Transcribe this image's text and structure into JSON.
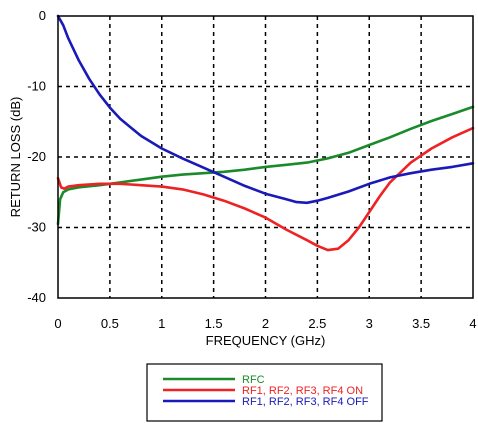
{
  "chart_data": {
    "type": "line",
    "title": "",
    "xlabel": "FREQUENCY (GHz)",
    "ylabel": "RETURN LOSS (dB)",
    "xlim": [
      0,
      4
    ],
    "ylim": [
      -40,
      0
    ],
    "x_ticks": [
      "0",
      "0.5",
      "1",
      "1.5",
      "2",
      "2.5",
      "3",
      "3.5",
      "4"
    ],
    "y_ticks": [
      "0",
      "-10",
      "-20",
      "-30",
      "-40"
    ],
    "grid": "dashed",
    "legend_position": "below",
    "series": [
      {
        "name": "RFC",
        "color": "#1a8a2a",
        "points": [
          [
            0.0,
            -29.5
          ],
          [
            0.02,
            -26.0
          ],
          [
            0.05,
            -25.0
          ],
          [
            0.1,
            -24.6
          ],
          [
            0.2,
            -24.3
          ],
          [
            0.4,
            -24.0
          ],
          [
            0.6,
            -23.6
          ],
          [
            0.8,
            -23.2
          ],
          [
            1.0,
            -22.8
          ],
          [
            1.2,
            -22.5
          ],
          [
            1.4,
            -22.3
          ],
          [
            1.6,
            -22.1
          ],
          [
            1.8,
            -21.8
          ],
          [
            2.0,
            -21.4
          ],
          [
            2.2,
            -21.1
          ],
          [
            2.4,
            -20.8
          ],
          [
            2.6,
            -20.2
          ],
          [
            2.8,
            -19.4
          ],
          [
            3.0,
            -18.3
          ],
          [
            3.2,
            -17.2
          ],
          [
            3.4,
            -16.0
          ],
          [
            3.6,
            -14.9
          ],
          [
            3.8,
            -13.9
          ],
          [
            4.0,
            -12.9
          ]
        ]
      },
      {
        "name": "RF1, RF2, RF3, RF4 ON",
        "color": "#ee2222",
        "points": [
          [
            0.0,
            -23.0
          ],
          [
            0.03,
            -24.3
          ],
          [
            0.06,
            -24.5
          ],
          [
            0.1,
            -24.2
          ],
          [
            0.2,
            -24.0
          ],
          [
            0.4,
            -23.8
          ],
          [
            0.6,
            -23.8
          ],
          [
            0.8,
            -24.0
          ],
          [
            1.0,
            -24.2
          ],
          [
            1.2,
            -24.6
          ],
          [
            1.4,
            -25.3
          ],
          [
            1.6,
            -26.2
          ],
          [
            1.8,
            -27.3
          ],
          [
            2.0,
            -28.6
          ],
          [
            2.2,
            -30.3
          ],
          [
            2.4,
            -31.8
          ],
          [
            2.5,
            -32.6
          ],
          [
            2.6,
            -33.2
          ],
          [
            2.7,
            -33.0
          ],
          [
            2.8,
            -31.8
          ],
          [
            2.9,
            -30.0
          ],
          [
            3.0,
            -27.8
          ],
          [
            3.1,
            -25.6
          ],
          [
            3.2,
            -23.6
          ],
          [
            3.4,
            -20.8
          ],
          [
            3.6,
            -18.8
          ],
          [
            3.8,
            -17.2
          ],
          [
            4.0,
            -15.9
          ]
        ]
      },
      {
        "name": "RF1, RF2, RF3, RF4 OFF",
        "color": "#1a1ab8",
        "points": [
          [
            0.0,
            0.0
          ],
          [
            0.05,
            -1.3
          ],
          [
            0.1,
            -3.2
          ],
          [
            0.2,
            -6.3
          ],
          [
            0.3,
            -8.9
          ],
          [
            0.4,
            -11.1
          ],
          [
            0.5,
            -13.0
          ],
          [
            0.6,
            -14.6
          ],
          [
            0.8,
            -17.0
          ],
          [
            1.0,
            -18.8
          ],
          [
            1.2,
            -20.2
          ],
          [
            1.4,
            -21.5
          ],
          [
            1.6,
            -22.8
          ],
          [
            1.8,
            -24.1
          ],
          [
            2.0,
            -25.2
          ],
          [
            2.2,
            -26.0
          ],
          [
            2.3,
            -26.4
          ],
          [
            2.4,
            -26.5
          ],
          [
            2.5,
            -26.2
          ],
          [
            2.6,
            -25.8
          ],
          [
            2.8,
            -24.9
          ],
          [
            3.0,
            -23.8
          ],
          [
            3.2,
            -22.9
          ],
          [
            3.4,
            -22.3
          ],
          [
            3.6,
            -21.8
          ],
          [
            3.8,
            -21.4
          ],
          [
            4.0,
            -20.9
          ]
        ]
      }
    ]
  }
}
